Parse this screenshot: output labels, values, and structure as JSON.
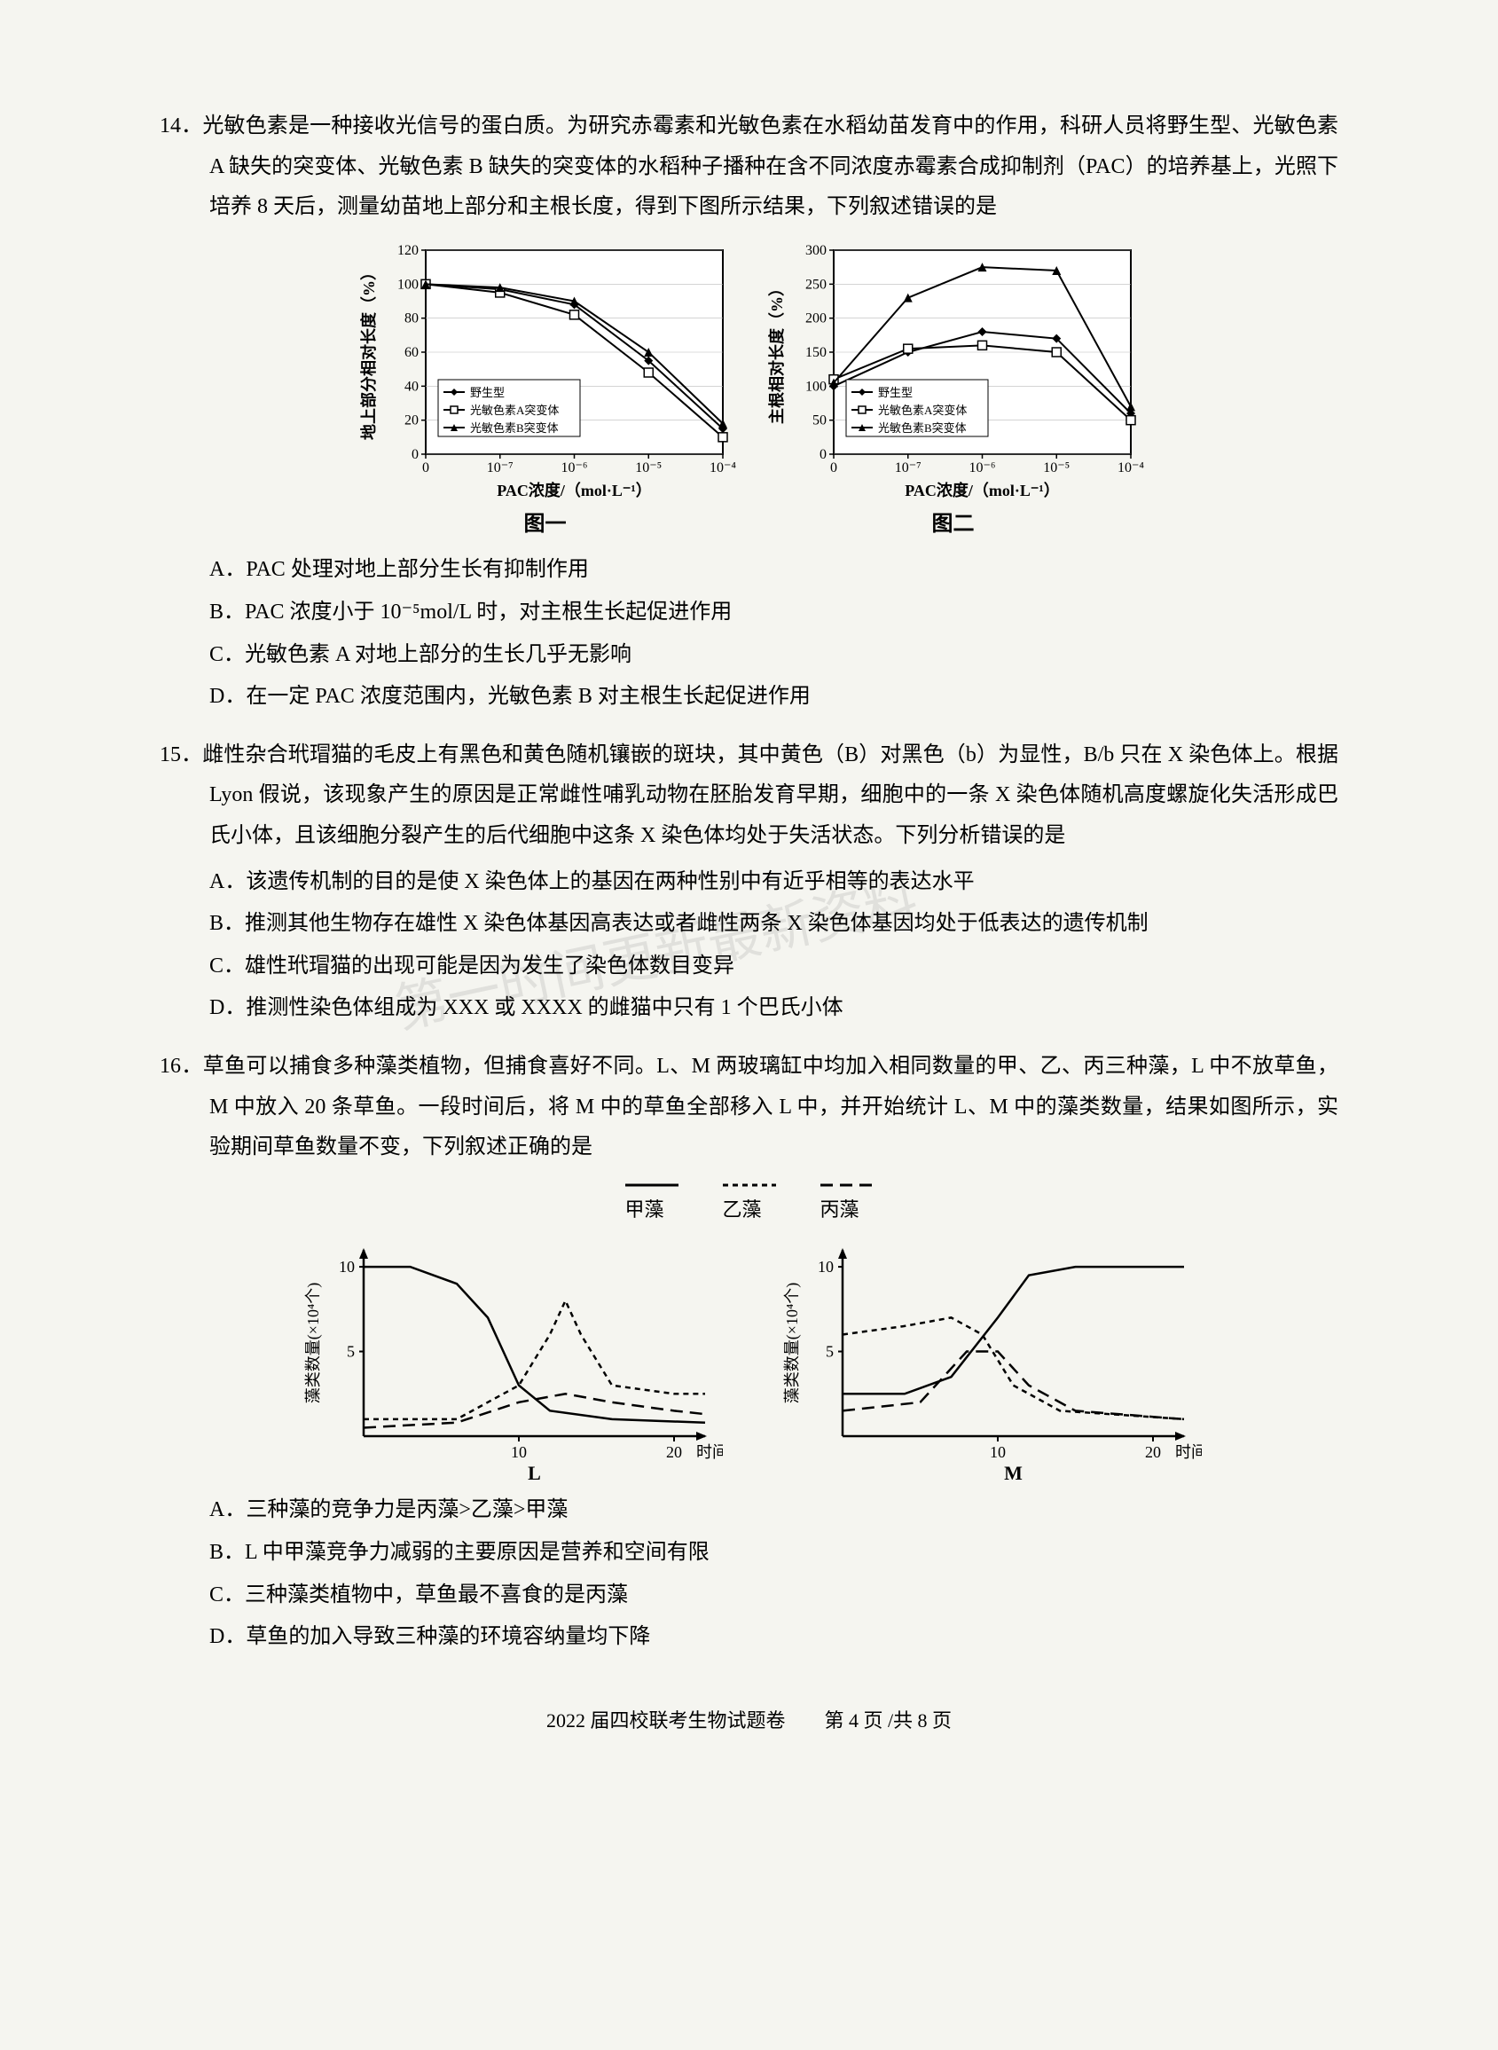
{
  "q14": {
    "num": "14．",
    "stem": "光敏色素是一种接收光信号的蛋白质。为研究赤霉素和光敏色素在水稻幼苗发育中的作用，科研人员将野生型、光敏色素 A 缺失的突变体、光敏色素 B 缺失的突变体的水稻种子播种在含不同浓度赤霉素合成抑制剂（PAC）的培养基上，光照下培养 8 天后，测量幼苗地上部分和主根长度，得到下图所示结果，下列叙述错误的是",
    "chart1": {
      "caption": "图一",
      "ylabel": "地上部分相对长度（%）",
      "xlabel": "PAC浓度/（mol·L⁻¹）",
      "xticks": [
        "0",
        "10⁻⁷",
        "10⁻⁶",
        "10⁻⁵",
        "10⁻⁴"
      ],
      "yticks": [
        0,
        20,
        40,
        60,
        80,
        100,
        120
      ],
      "ylim": [
        0,
        120
      ],
      "legend": [
        "野生型",
        "光敏色素A突变体",
        "光敏色素B突变体"
      ],
      "markers": [
        "diamond-filled",
        "square-open",
        "triangle-filled"
      ],
      "series_colors": [
        "#000000",
        "#000000",
        "#000000"
      ],
      "line_width": 2,
      "grid_color": "#999999",
      "background": "#ffffff",
      "series": {
        "wild": [
          100,
          97,
          88,
          55,
          15
        ],
        "mutA": [
          100,
          95,
          82,
          48,
          10
        ],
        "mutB": [
          100,
          98,
          90,
          60,
          18
        ]
      }
    },
    "chart2": {
      "caption": "图二",
      "ylabel": "主根相对长度（%）",
      "xlabel": "PAC浓度/（mol·L⁻¹）",
      "xticks": [
        "0",
        "10⁻⁷",
        "10⁻⁶",
        "10⁻⁵",
        "10⁻⁴"
      ],
      "yticks": [
        0,
        50,
        100,
        150,
        200,
        250,
        300
      ],
      "ylim": [
        0,
        300
      ],
      "legend": [
        "野生型",
        "光敏色素A突变体",
        "光敏色素B突变体"
      ],
      "markers": [
        "diamond-filled",
        "square-open",
        "triangle-filled"
      ],
      "series_colors": [
        "#000000",
        "#000000",
        "#000000"
      ],
      "line_width": 2,
      "grid_color": "#999999",
      "background": "#ffffff",
      "series": {
        "wild": [
          100,
          150,
          180,
          170,
          60
        ],
        "mutA": [
          110,
          155,
          160,
          150,
          50
        ],
        "mutB": [
          105,
          230,
          275,
          270,
          70
        ]
      }
    },
    "options": {
      "A": "A．PAC 处理对地上部分生长有抑制作用",
      "B": "B．PAC 浓度小于 10⁻⁵mol/L 时，对主根生长起促进作用",
      "C": "C．光敏色素 A 对地上部分的生长几乎无影响",
      "D": "D．在一定 PAC 浓度范围内，光敏色素 B 对主根生长起促进作用"
    }
  },
  "q15": {
    "num": "15．",
    "stem": "雌性杂合玳瑁猫的毛皮上有黑色和黄色随机镶嵌的斑块，其中黄色（B）对黑色（b）为显性，B/b 只在 X 染色体上。根据 Lyon 假说，该现象产生的原因是正常雌性哺乳动物在胚胎发育早期，细胞中的一条 X 染色体随机高度螺旋化失活形成巴氏小体，且该细胞分裂产生的后代细胞中这条 X 染色体均处于失活状态。下列分析错误的是",
    "options": {
      "A": "A．该遗传机制的目的是使 X 染色体上的基因在两种性别中有近乎相等的表达水平",
      "B": "B．推测其他生物存在雄性 X 染色体基因高表达或者雌性两条 X 染色体基因均处于低表达的遗传机制",
      "C": "C．雄性玳瑁猫的出现可能是因为发生了染色体数目变异",
      "D": "D．推测性染色体组成为 XXX 或 XXXX 的雌猫中只有 1 个巴氏小体"
    }
  },
  "q16": {
    "num": "16．",
    "stem": "草鱼可以捕食多种藻类植物，但捕食喜好不同。L、M 两玻璃缸中均加入相同数量的甲、乙、丙三种藻，L 中不放草鱼，M 中放入 20 条草鱼。一段时间后，将 M 中的草鱼全部移入 L 中，并开始统计 L、M 中的藻类数量，结果如图所示，实验期间草鱼数量不变，下列叙述正确的是",
    "legend": [
      "甲藻",
      "乙藻",
      "丙藻"
    ],
    "legend_styles": [
      "solid",
      "short-dash",
      "long-dash"
    ],
    "chartL": {
      "label": "L",
      "ylabel": "藻类数量(×10⁴个)",
      "xlabel": "时间(天)",
      "xticks": [
        "",
        "10",
        "20"
      ],
      "yticks": [
        0,
        5,
        10
      ],
      "ylim": [
        0,
        11
      ],
      "xlim": [
        0,
        22
      ],
      "background": "#ffffff",
      "line_width": 2.5,
      "series": {
        "jia": [
          [
            0,
            10
          ],
          [
            3,
            10
          ],
          [
            6,
            9
          ],
          [
            8,
            7
          ],
          [
            10,
            3
          ],
          [
            12,
            1.5
          ],
          [
            16,
            1
          ],
          [
            22,
            0.8
          ]
        ],
        "yi": [
          [
            0,
            1
          ],
          [
            6,
            1
          ],
          [
            10,
            3
          ],
          [
            12,
            6
          ],
          [
            13,
            8
          ],
          [
            14,
            6
          ],
          [
            16,
            3
          ],
          [
            20,
            2.5
          ],
          [
            22,
            2.5
          ]
        ],
        "bing": [
          [
            0,
            0.5
          ],
          [
            6,
            0.8
          ],
          [
            10,
            2
          ],
          [
            13,
            2.5
          ],
          [
            16,
            2
          ],
          [
            20,
            1.5
          ],
          [
            22,
            1.3
          ]
        ]
      }
    },
    "chartM": {
      "label": "M",
      "ylabel": "藻类数量(×10⁴个)",
      "xlabel": "时间(天)",
      "xticks": [
        "",
        "10",
        "20"
      ],
      "yticks": [
        0,
        5,
        10
      ],
      "ylim": [
        0,
        11
      ],
      "xlim": [
        0,
        22
      ],
      "background": "#ffffff",
      "line_width": 2.5,
      "series": {
        "jia": [
          [
            0,
            2.5
          ],
          [
            4,
            2.5
          ],
          [
            7,
            3.5
          ],
          [
            10,
            7
          ],
          [
            12,
            9.5
          ],
          [
            15,
            10
          ],
          [
            22,
            10
          ]
        ],
        "yi": [
          [
            0,
            6
          ],
          [
            4,
            6.5
          ],
          [
            7,
            7
          ],
          [
            9,
            6
          ],
          [
            11,
            3
          ],
          [
            14,
            1.5
          ],
          [
            22,
            1
          ]
        ],
        "bing": [
          [
            0,
            1.5
          ],
          [
            5,
            2
          ],
          [
            8,
            5
          ],
          [
            10,
            5
          ],
          [
            12,
            3
          ],
          [
            15,
            1.5
          ],
          [
            22,
            1
          ]
        ]
      }
    },
    "options": {
      "A": "A．三种藻的竞争力是丙藻>乙藻>甲藻",
      "B": "B．L 中甲藻竞争力减弱的主要原因是营养和空间有限",
      "C": "C．三种藻类植物中，草鱼最不喜食的是丙藻",
      "D": "D．草鱼的加入导致三种藻的环境容纳量均下降"
    }
  },
  "footer": "2022 届四校联考生物试题卷　　第 4 页 /共 8 页",
  "watermark": "第一时间更新最新资料",
  "colors": {
    "text": "#000000",
    "paper": "#f5f5f0",
    "axis": "#000000",
    "grid": "#bbbbbb"
  }
}
